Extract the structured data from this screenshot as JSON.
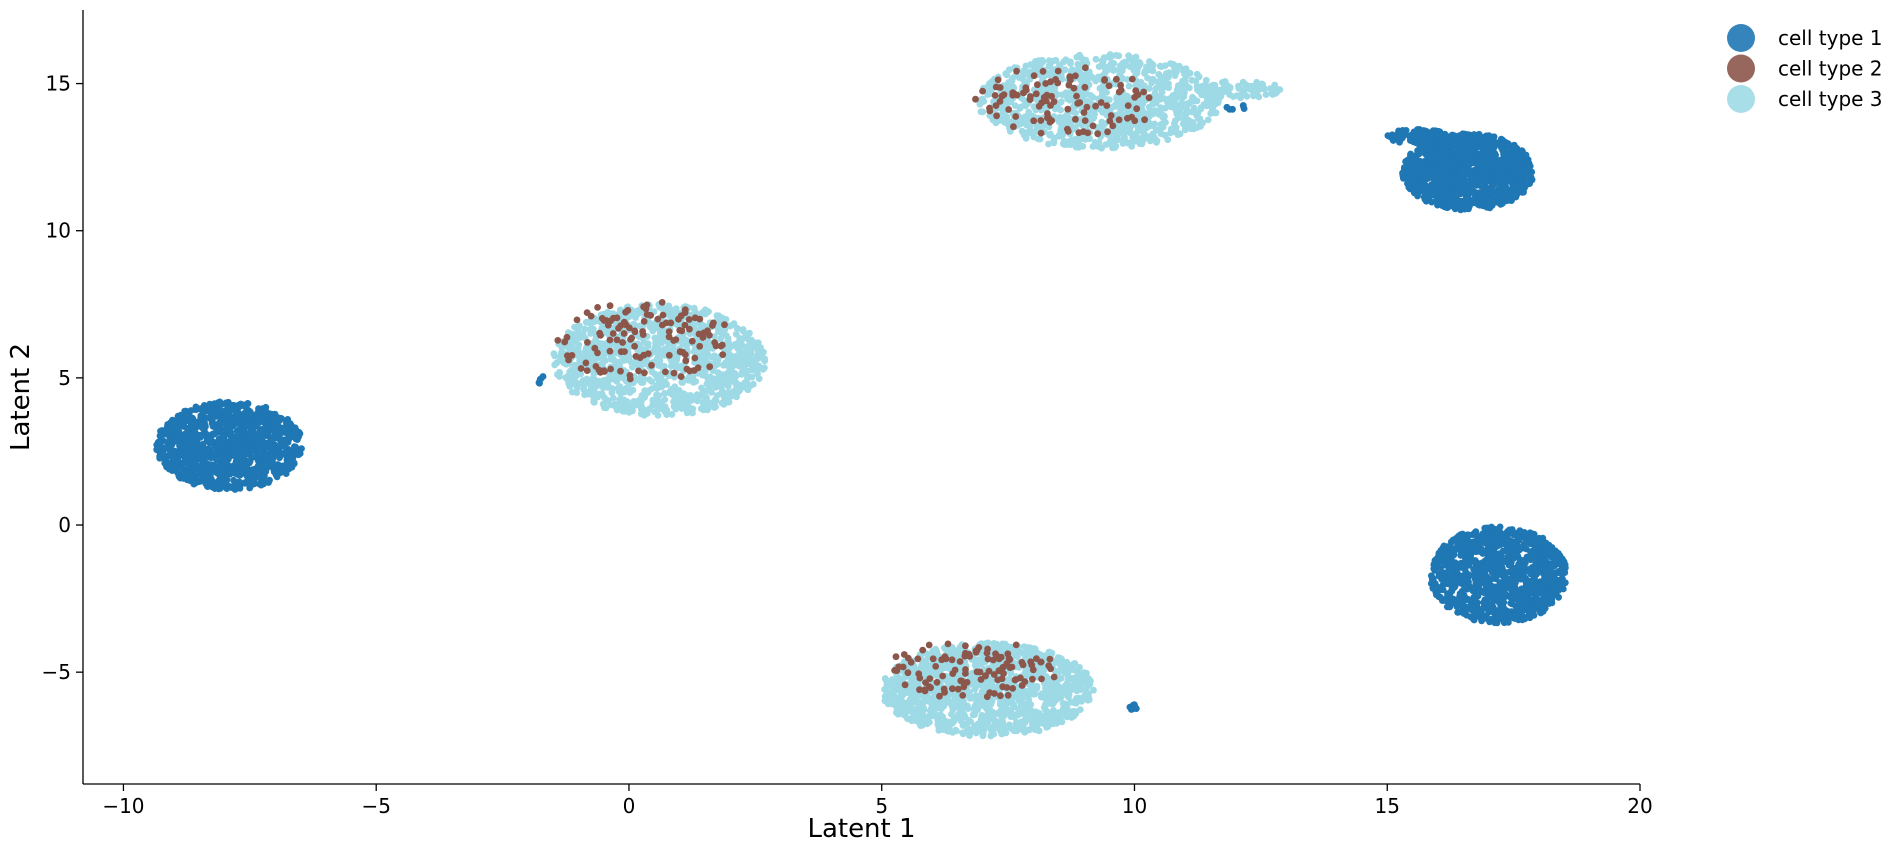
{
  "chart_data": {
    "type": "scatter",
    "title": "",
    "xlabel": "Latent 1",
    "ylabel": "Latent 2",
    "xlim": [
      -10.8,
      20
    ],
    "ylim": [
      -8.8,
      17.5
    ],
    "xticks": [
      -10,
      -5,
      0,
      5,
      10,
      15,
      20
    ],
    "yticks": [
      -5,
      0,
      5,
      10,
      15
    ],
    "grid": false,
    "legend_position": "top-right outside",
    "series": [
      {
        "name": "cell type 1",
        "color": "#1f77b4",
        "clusters": [
          {
            "cx": -7.9,
            "cy": 2.7,
            "rx": 1.45,
            "ry": 1.5,
            "n": 1100
          },
          {
            "cx": 16.6,
            "cy": 12.0,
            "rx": 1.3,
            "ry": 1.3,
            "n": 1000
          },
          {
            "cx": 17.2,
            "cy": -1.7,
            "rx": 1.35,
            "ry": 1.65,
            "n": 1000
          },
          {
            "cx": 15.6,
            "cy": 13.2,
            "rx": 0.6,
            "ry": 0.25,
            "n": 80
          },
          {
            "cx": 10.0,
            "cy": -6.2,
            "rx": 0.1,
            "ry": 0.1,
            "n": 8
          },
          {
            "cx": 12.0,
            "cy": 14.2,
            "rx": 0.2,
            "ry": 0.1,
            "n": 6
          },
          {
            "cx": -1.7,
            "cy": 4.9,
            "rx": 0.1,
            "ry": 0.2,
            "n": 5
          }
        ]
      },
      {
        "name": "cell type 2",
        "color": "#8c564b",
        "clusters": [
          {
            "cx": 0.3,
            "cy": 6.2,
            "rx": 1.8,
            "ry": 1.4,
            "n": 120
          },
          {
            "cx": 6.8,
            "cy": -4.9,
            "rx": 1.7,
            "ry": 1.0,
            "n": 110
          },
          {
            "cx": 8.6,
            "cy": 14.4,
            "rx": 1.9,
            "ry": 1.2,
            "n": 100
          }
        ]
      },
      {
        "name": "cell type 3",
        "color": "#9edae5",
        "clusters": [
          {
            "cx": 0.6,
            "cy": 5.6,
            "rx": 2.1,
            "ry": 1.9,
            "n": 1100
          },
          {
            "cx": 7.1,
            "cy": -5.6,
            "rx": 2.1,
            "ry": 1.6,
            "n": 1200
          },
          {
            "cx": 9.3,
            "cy": 14.4,
            "rx": 2.4,
            "ry": 1.6,
            "n": 1000
          },
          {
            "cx": 12.0,
            "cy": 14.8,
            "rx": 0.9,
            "ry": 0.3,
            "n": 80
          }
        ]
      }
    ]
  }
}
